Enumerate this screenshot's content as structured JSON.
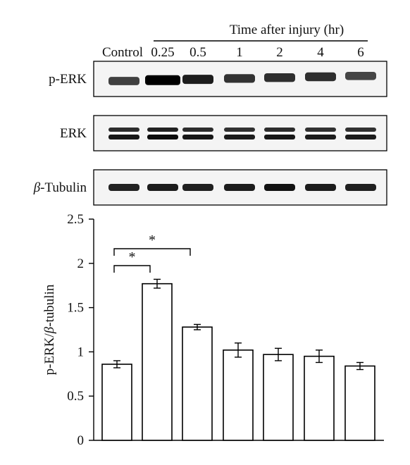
{
  "blot": {
    "time_header": "Time after injury (hr)",
    "lanes": [
      "Control",
      "0.25",
      "0.5",
      "1",
      "2",
      "4",
      "6"
    ],
    "rows": [
      {
        "label": "p-ERK",
        "label_italic_prefix": "",
        "band_darkness": [
          0.72,
          1.0,
          0.88,
          0.78,
          0.8,
          0.8,
          0.7
        ],
        "double_band": false
      },
      {
        "label": "ERK",
        "label_italic_prefix": "",
        "band_darkness": [
          0.9,
          0.95,
          0.9,
          0.88,
          0.9,
          0.88,
          0.88
        ],
        "double_band": true
      },
      {
        "label": "-Tubulin",
        "label_italic_prefix": "β",
        "band_darkness": [
          0.85,
          0.88,
          0.86,
          0.88,
          0.92,
          0.88,
          0.86
        ],
        "double_band": false
      }
    ]
  },
  "chart_data": {
    "type": "bar",
    "categories": [
      "Control",
      "0.25",
      "0.5",
      "1",
      "2",
      "4",
      "6"
    ],
    "values": [
      0.86,
      1.77,
      1.28,
      1.02,
      0.97,
      0.95,
      0.84
    ],
    "errors": [
      0.04,
      0.05,
      0.03,
      0.08,
      0.07,
      0.07,
      0.04
    ],
    "ylabel_prefix": "p-ERK/",
    "ylabel_italic": "β",
    "ylabel_suffix": "-tubulin",
    "xlabel": "",
    "ylim": [
      0,
      2.5
    ],
    "yticks": [
      "0",
      "0.5",
      "1",
      "1.5",
      "2",
      "2.5"
    ],
    "bar_fill": "#ffffff",
    "bar_stroke": "#000000",
    "significance": [
      {
        "from": 0,
        "to": 1,
        "label": "*"
      },
      {
        "from": 0,
        "to": 2,
        "label": "*"
      }
    ]
  }
}
